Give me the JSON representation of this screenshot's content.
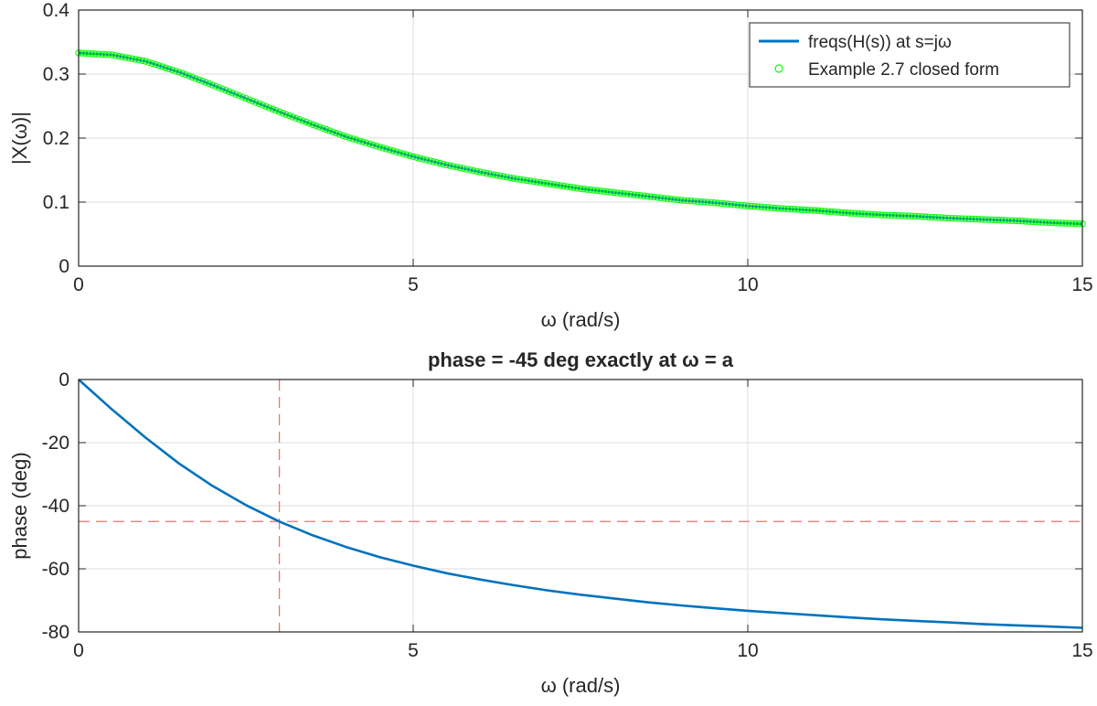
{
  "chart_data": [
    {
      "type": "line",
      "xlabel": "ω (rad/s)",
      "ylabel": "|X(ω)|",
      "xlim": [
        0,
        15
      ],
      "ylim": [
        0,
        0.4
      ],
      "xticks": [
        0,
        5,
        10,
        15
      ],
      "yticks": [
        0,
        0.1,
        0.2,
        0.3,
        0.4
      ],
      "xtick_labels": [
        "0",
        "5",
        "10",
        "15"
      ],
      "ytick_labels": [
        "0",
        "0.1",
        "0.2",
        "0.3",
        "0.4"
      ],
      "grid": true,
      "legend_position": "top-right",
      "series": [
        {
          "name": "freqs(H(s))  at  s=jω",
          "style": "line",
          "color": "#0072BD",
          "x": [
            0,
            0.5,
            1,
            1.5,
            2,
            2.5,
            3,
            3.5,
            4,
            4.5,
            5,
            5.5,
            6,
            6.5,
            7,
            7.5,
            8,
            8.5,
            9,
            9.5,
            10,
            10.5,
            11,
            11.5,
            12,
            12.5,
            13,
            13.5,
            14,
            14.5,
            15
          ],
          "y": [
            0.333,
            0.33,
            0.32,
            0.303,
            0.283,
            0.262,
            0.241,
            0.221,
            0.202,
            0.186,
            0.171,
            0.158,
            0.147,
            0.137,
            0.129,
            0.121,
            0.115,
            0.109,
            0.103,
            0.099,
            0.094,
            0.09,
            0.087,
            0.083,
            0.08,
            0.078,
            0.075,
            0.073,
            0.071,
            0.068,
            0.066
          ]
        },
        {
          "name": "Example 2.7 closed form",
          "style": "markers",
          "marker": "circle",
          "color": "#00FF00",
          "x": [
            0,
            0.5,
            1,
            1.5,
            2,
            2.5,
            3,
            3.5,
            4,
            4.5,
            5,
            5.5,
            6,
            6.5,
            7,
            7.5,
            8,
            8.5,
            9,
            9.5,
            10,
            10.5,
            11,
            11.5,
            12,
            12.5,
            13,
            13.5,
            14,
            14.5,
            15
          ],
          "y": [
            0.333,
            0.33,
            0.32,
            0.303,
            0.283,
            0.262,
            0.241,
            0.221,
            0.202,
            0.186,
            0.171,
            0.158,
            0.147,
            0.137,
            0.129,
            0.121,
            0.115,
            0.109,
            0.103,
            0.099,
            0.094,
            0.09,
            0.087,
            0.083,
            0.08,
            0.078,
            0.075,
            0.073,
            0.071,
            0.068,
            0.066
          ]
        }
      ]
    },
    {
      "type": "line",
      "title": "phase  =  -45  deg  exactly  at  ω  =  a",
      "xlabel": "ω (rad/s)",
      "ylabel": "phase (deg)",
      "xlim": [
        0,
        15
      ],
      "ylim": [
        -80,
        0
      ],
      "xticks": [
        0,
        5,
        10,
        15
      ],
      "yticks": [
        -80,
        -60,
        -40,
        -20,
        0
      ],
      "xtick_labels": [
        "0",
        "5",
        "10",
        "15"
      ],
      "ytick_labels": [
        "-80",
        "-60",
        "-40",
        "-20",
        "0"
      ],
      "grid": true,
      "series": [
        {
          "style": "line",
          "color": "#0072BD",
          "x": [
            0,
            0.5,
            1,
            1.5,
            2,
            2.5,
            3,
            3.5,
            4,
            4.5,
            5,
            5.5,
            6,
            6.5,
            7,
            7.5,
            8,
            8.5,
            9,
            9.5,
            10,
            10.5,
            11,
            11.5,
            12,
            12.5,
            13,
            13.5,
            14,
            14.5,
            15
          ],
          "y": [
            0,
            -9.5,
            -18.4,
            -26.6,
            -33.7,
            -39.8,
            -45,
            -49.4,
            -53.1,
            -56.3,
            -59,
            -61.4,
            -63.4,
            -65.2,
            -66.8,
            -68.2,
            -69.4,
            -70.6,
            -71.6,
            -72.5,
            -73.3,
            -74,
            -74.7,
            -75.4,
            -76,
            -76.5,
            -77,
            -77.5,
            -77.9,
            -78.3,
            -78.7
          ]
        }
      ],
      "reference_lines": [
        {
          "orientation": "vertical",
          "x": 3,
          "style": "dashed",
          "color": "#E8766F"
        },
        {
          "orientation": "horizontal",
          "y": -45,
          "style": "dashed",
          "color": "#E8766F"
        }
      ]
    }
  ]
}
